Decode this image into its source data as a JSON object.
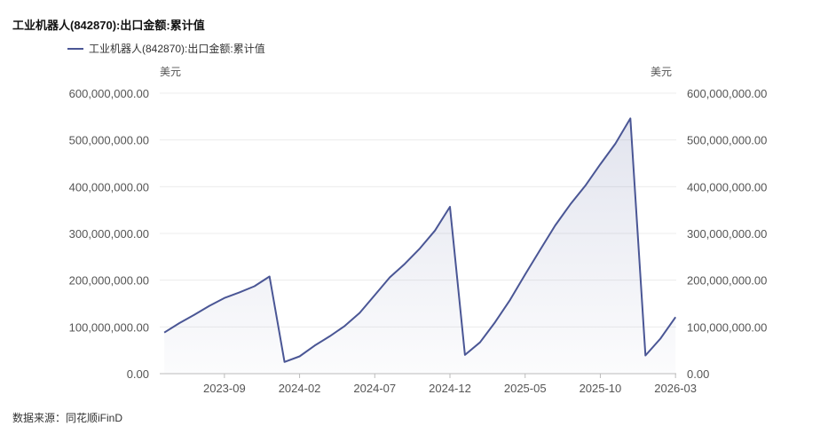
{
  "header": {
    "title": "工业机器人(842870):出口金额:累计值"
  },
  "legend": {
    "label": "工业机器人(842870):出口金额:累计值",
    "color": "#4a5695"
  },
  "units": {
    "left": "美元",
    "right": "美元"
  },
  "footer": {
    "source": "数据来源：同花顺iFinD"
  },
  "chart_data": {
    "type": "area",
    "title": "工业机器人(842870):出口金额:累计值",
    "series": [
      {
        "name": "工业机器人(842870):出口金额:累计值",
        "color": "#4a5695",
        "x": [
          "2023-05",
          "2023-06",
          "2023-07",
          "2023-08",
          "2023-09",
          "2023-10",
          "2023-11",
          "2023-12",
          "2024-01",
          "2024-02",
          "2024-03",
          "2024-04",
          "2024-05",
          "2024-06",
          "2024-07",
          "2024-08",
          "2024-09",
          "2024-10",
          "2024-11",
          "2024-12",
          "2025-01",
          "2025-02",
          "2025-03",
          "2025-04",
          "2025-05",
          "2025-06",
          "2025-07",
          "2025-08",
          "2025-09",
          "2025-10",
          "2025-11",
          "2025-12",
          "2026-01",
          "2026-02",
          "2026-03"
        ],
        "values": [
          88000000,
          108000000,
          126000000,
          145000000,
          162000000,
          174000000,
          187000000,
          208000000,
          25000000,
          37000000,
          60000000,
          80000000,
          102000000,
          130000000,
          168000000,
          206000000,
          235000000,
          268000000,
          306000000,
          357000000,
          40000000,
          67000000,
          110000000,
          158000000,
          212000000,
          265000000,
          317000000,
          362000000,
          402000000,
          448000000,
          492000000,
          546000000,
          39000000,
          75000000,
          121000000
        ]
      }
    ],
    "x_ticks": [
      "2023-09",
      "2024-02",
      "2024-07",
      "2024-12",
      "2025-05",
      "2025-10",
      "2026-03"
    ],
    "y_ticks": [
      "0.00",
      "100,000,000.00",
      "200,000,000.00",
      "300,000,000.00",
      "400,000,000.00",
      "500,000,000.00",
      "600,000,000.00"
    ],
    "ylim": [
      0,
      600000000
    ],
    "ylabel_left": "美元",
    "ylabel_right": "美元",
    "grid": true,
    "legend_position": "top-left"
  }
}
